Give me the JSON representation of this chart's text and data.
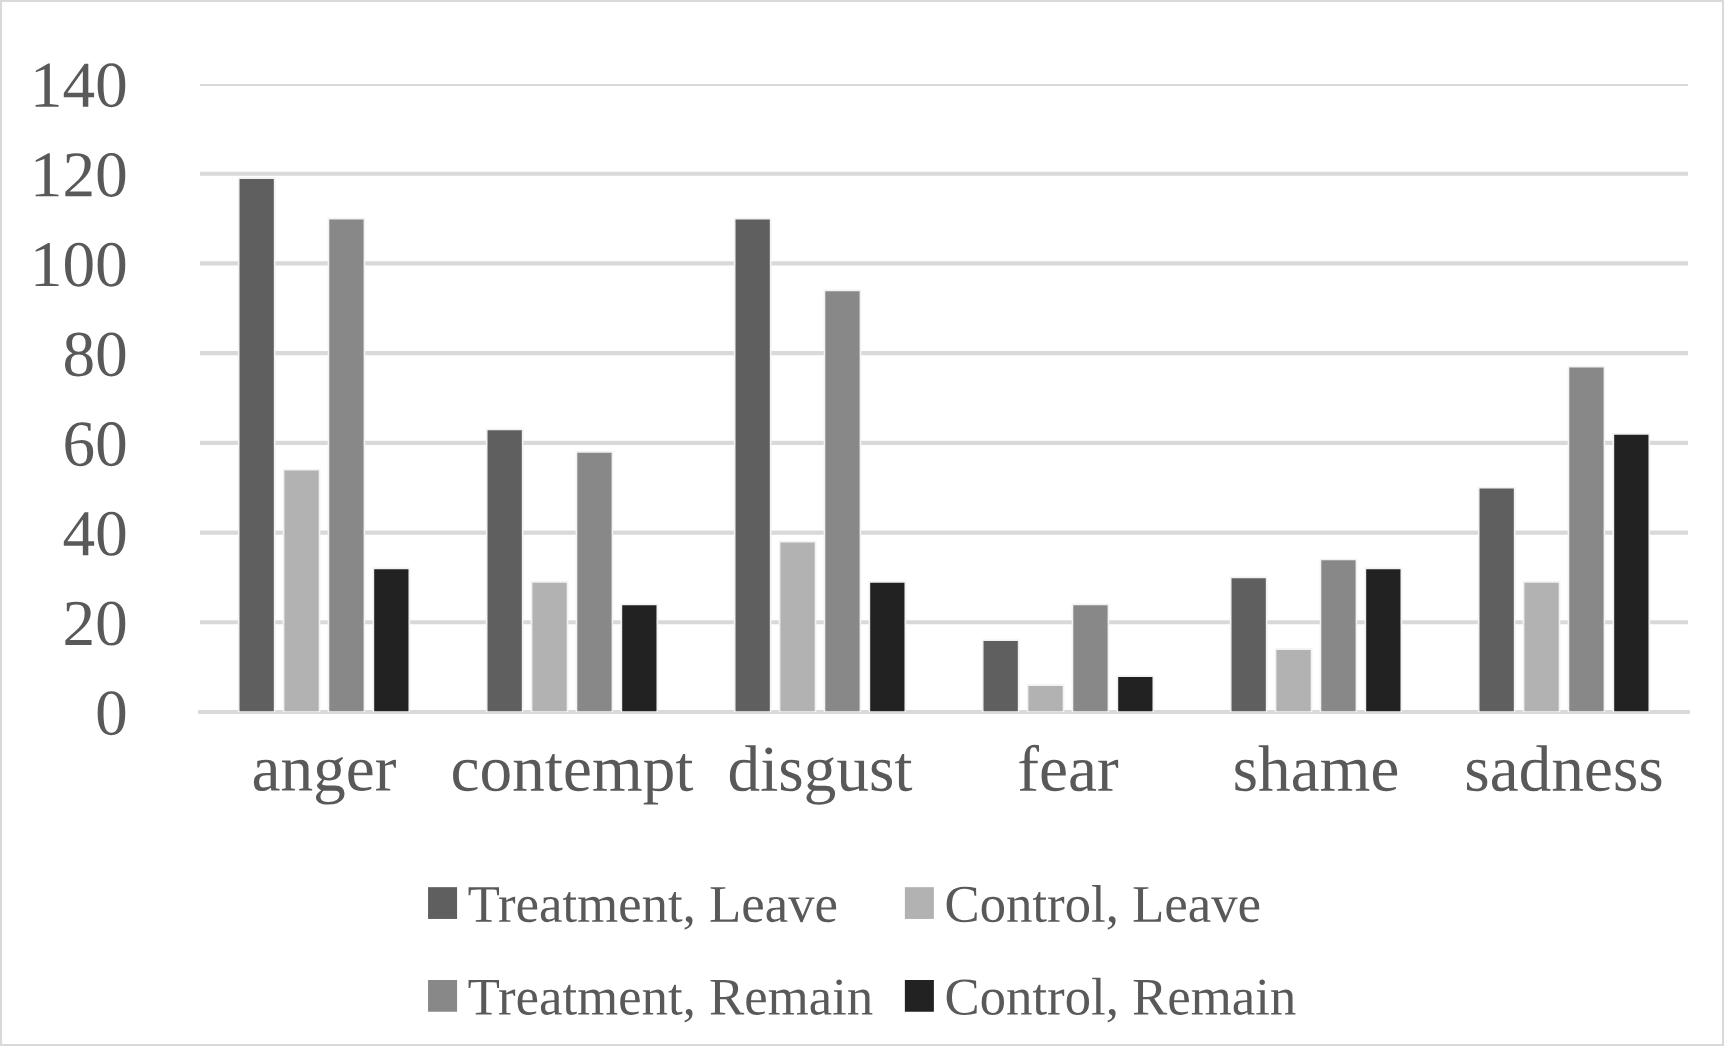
{
  "chart_data": {
    "type": "bar",
    "categories": [
      "anger",
      "contempt",
      "disgust",
      "fear",
      "shame",
      "sadness"
    ],
    "series": [
      {
        "name": "Treatment, Leave",
        "color": "#5f5f5f",
        "values": [
          119,
          63,
          110,
          16,
          30,
          50
        ]
      },
      {
        "name": "Control, Leave",
        "color": "#b2b2b2",
        "values": [
          54,
          29,
          38,
          6,
          14,
          29
        ]
      },
      {
        "name": "Treatment, Remain",
        "color": "#888888",
        "values": [
          110,
          58,
          94,
          24,
          34,
          77
        ]
      },
      {
        "name": "Control, Remain",
        "color": "#222222",
        "values": [
          32,
          24,
          29,
          8,
          32,
          62
        ]
      }
    ],
    "ylim": [
      0,
      140
    ],
    "yticks": [
      0,
      20,
      40,
      60,
      80,
      100,
      120,
      140
    ],
    "grid": "y",
    "legend": "bottom"
  }
}
